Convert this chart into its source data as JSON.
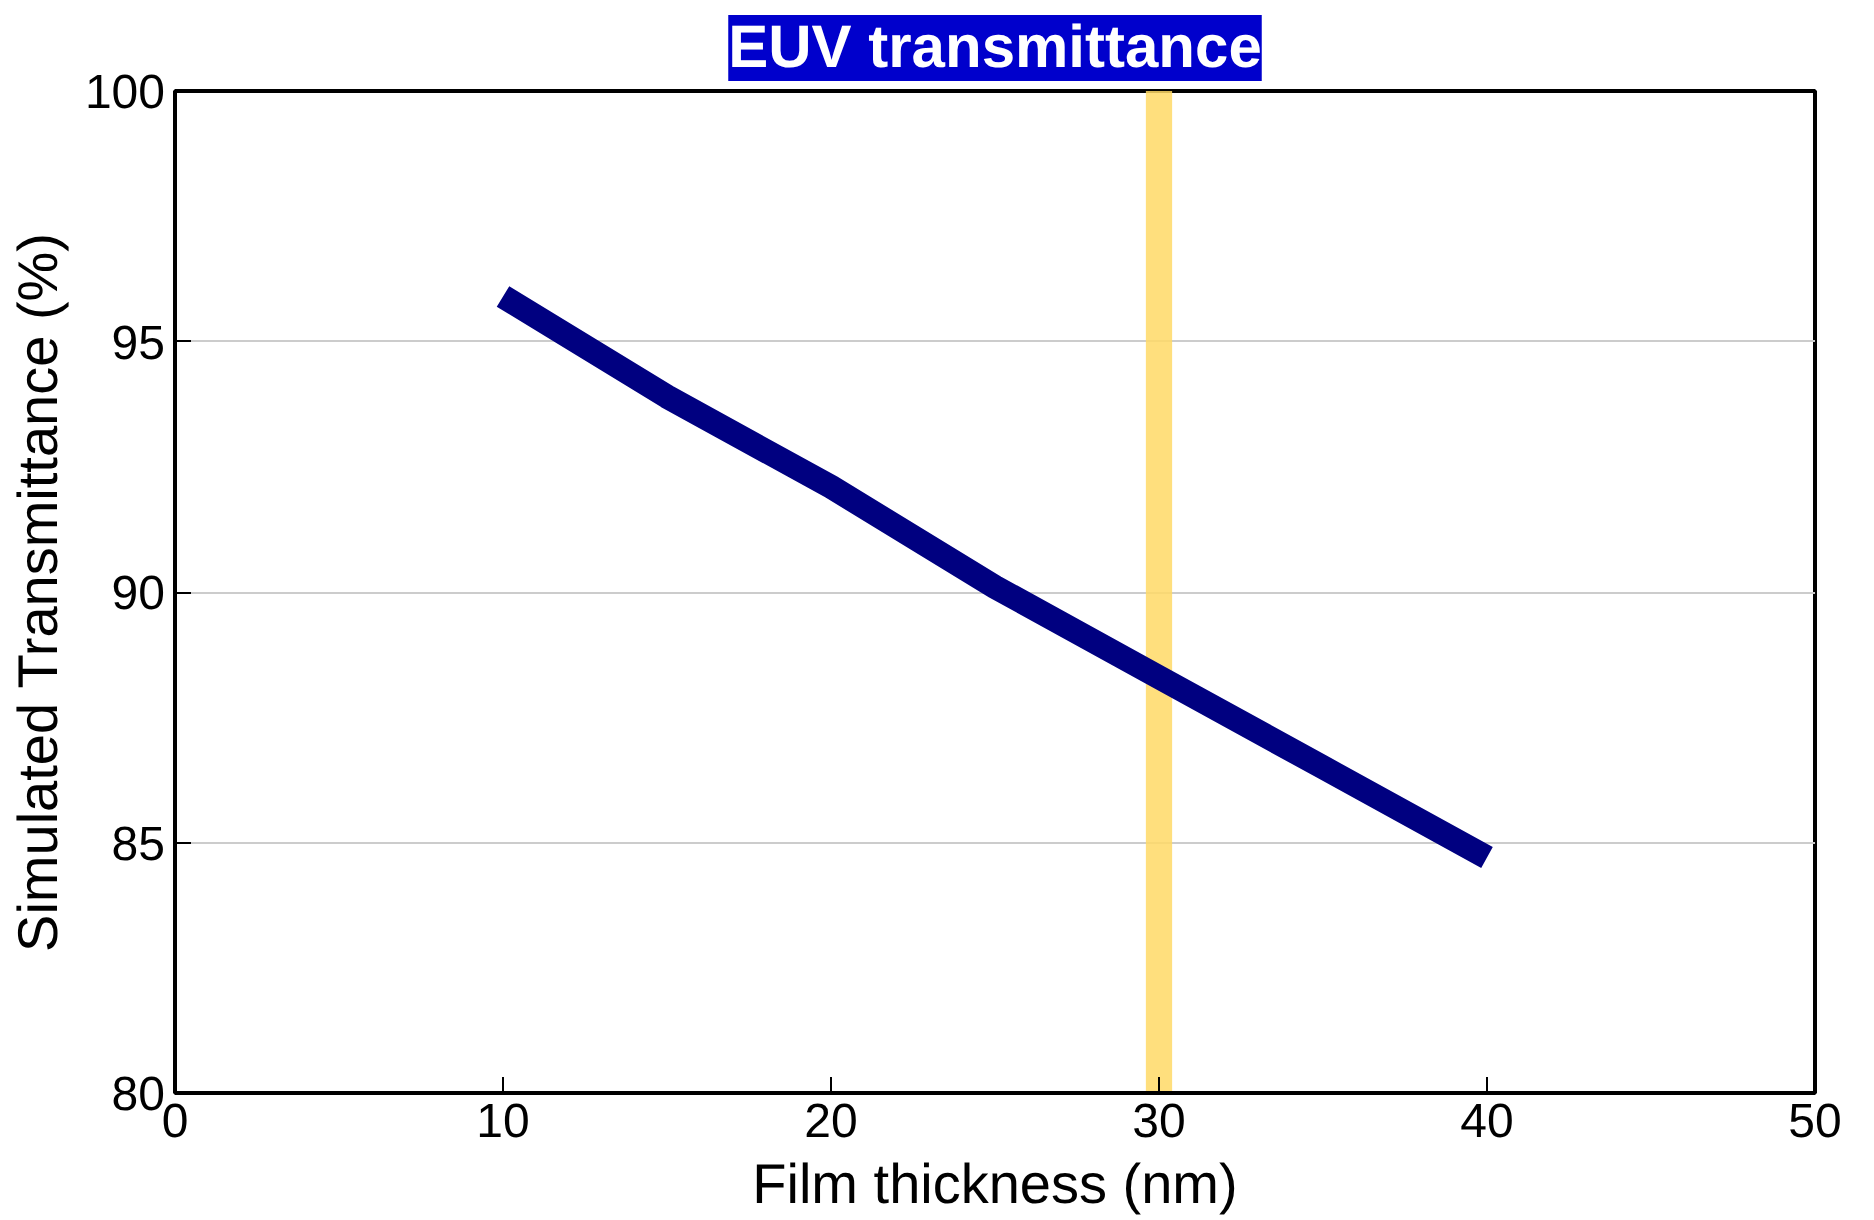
{
  "chart_data": {
    "type": "line",
    "title": "EUV transmittance",
    "xlabel": "Film thickness (nm)",
    "ylabel": "Simulated Transmittance (%)",
    "x": [
      10,
      15,
      20,
      25,
      30,
      35,
      40
    ],
    "series": [
      {
        "color": "#000080",
        "values": [
          95.9,
          93.9,
          92.1,
          90.1,
          88.3,
          86.5,
          84.7
        ]
      }
    ],
    "xlim": [
      0,
      50
    ],
    "xticks": [
      0,
      10,
      20,
      30,
      40,
      50
    ],
    "ylim": [
      80,
      100
    ],
    "yticks": [
      80,
      85,
      90,
      95,
      100
    ],
    "bands": [
      {
        "axis": "x",
        "from": 29.6,
        "to": 30.4,
        "color": "#ffd966"
      }
    ],
    "grid": "y",
    "marker": "none",
    "line_style": "solid"
  }
}
